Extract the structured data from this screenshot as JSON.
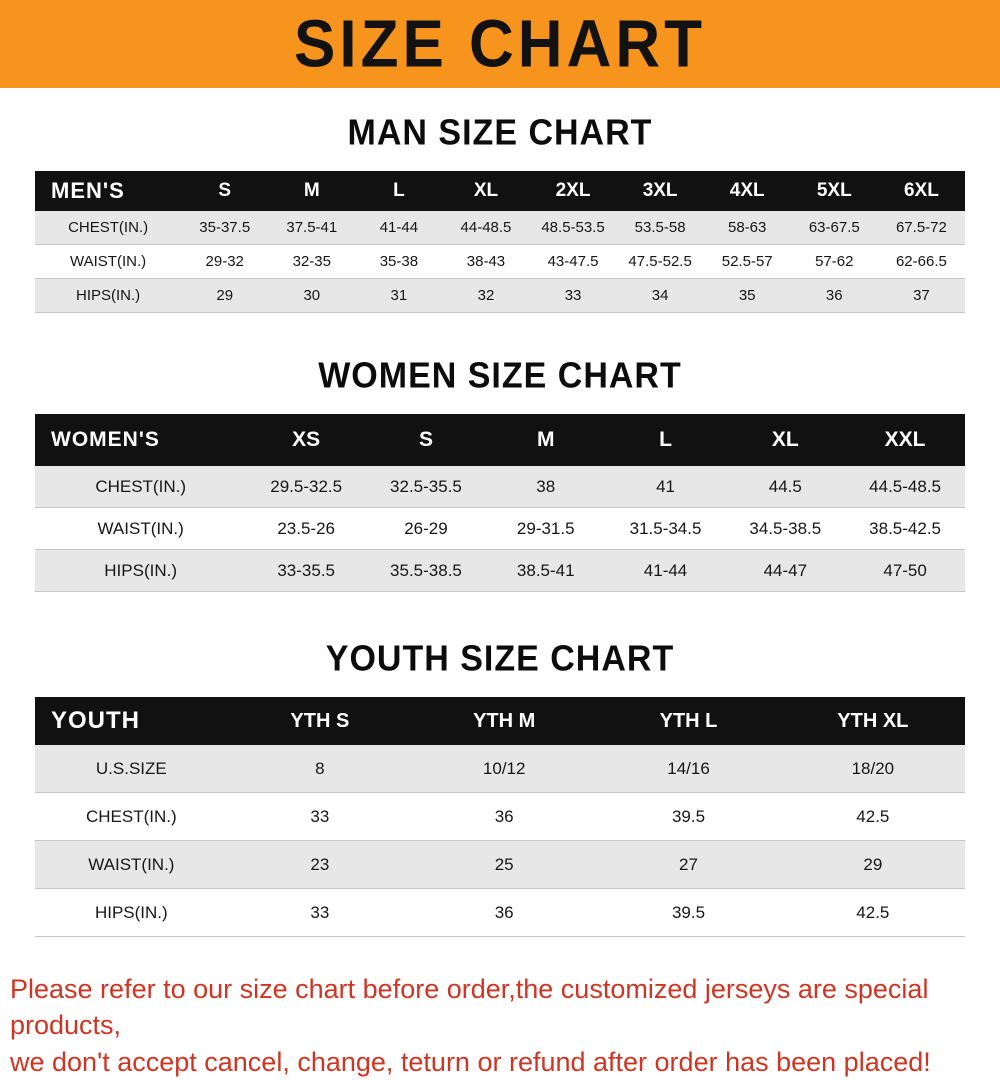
{
  "banner": {
    "title": "SIZE CHART"
  },
  "colors": {
    "banner_bg": "#f7941e",
    "banner_text": "#121212",
    "table_header_bg": "#111111",
    "table_header_text": "#ffffff",
    "row_alt_bg": "#e7e7e7",
    "footer_text": "#cf3522"
  },
  "sections": [
    {
      "heading": "MAN SIZE CHART",
      "table": {
        "header": [
          "MEN'S",
          "S",
          "M",
          "L",
          "XL",
          "2XL",
          "3XL",
          "4XL",
          "5XL",
          "6XL"
        ],
        "rows": [
          [
            "CHEST(IN.)",
            "35-37.5",
            "37.5-41",
            "41-44",
            "44-48.5",
            "48.5-53.5",
            "53.5-58",
            "58-63",
            "63-67.5",
            "67.5-72"
          ],
          [
            "WAIST(IN.)",
            "29-32",
            "32-35",
            "35-38",
            "38-43",
            "43-47.5",
            "47.5-52.5",
            "52.5-57",
            "57-62",
            "62-66.5"
          ],
          [
            "HIPS(IN.)",
            "29",
            "30",
            "31",
            "32",
            "33",
            "34",
            "35",
            "36",
            "37"
          ]
        ]
      }
    },
    {
      "heading": "WOMEN SIZE CHART",
      "table": {
        "header": [
          "WOMEN'S",
          "XS",
          "S",
          "M",
          "L",
          "XL",
          "XXL"
        ],
        "rows": [
          [
            "CHEST(IN.)",
            "29.5-32.5",
            "32.5-35.5",
            "38",
            "41",
            "44.5",
            "44.5-48.5"
          ],
          [
            "WAIST(IN.)",
            "23.5-26",
            "26-29",
            "29-31.5",
            "31.5-34.5",
            "34.5-38.5",
            "38.5-42.5"
          ],
          [
            "HIPS(IN.)",
            "33-35.5",
            "35.5-38.5",
            "38.5-41",
            "41-44",
            "44-47",
            "47-50"
          ]
        ]
      }
    },
    {
      "heading": "YOUTH SIZE CHART",
      "table": {
        "header": [
          "YOUTH",
          "YTH S",
          "YTH M",
          "YTH L",
          "YTH XL"
        ],
        "rows": [
          [
            "U.S.SIZE",
            "8",
            "10/12",
            "14/16",
            "18/20"
          ],
          [
            "CHEST(IN.)",
            "33",
            "36",
            "39.5",
            "42.5"
          ],
          [
            "WAIST(IN.)",
            "23",
            "25",
            "27",
            "29"
          ],
          [
            "HIPS(IN.)",
            "33",
            "36",
            "39.5",
            "42.5"
          ]
        ]
      }
    }
  ],
  "footer": {
    "line1": "Please refer to our size chart before order,the customized jerseys are special products,",
    "line2": "we don't accept cancel, change, teturn or refund after order has been placed!"
  }
}
